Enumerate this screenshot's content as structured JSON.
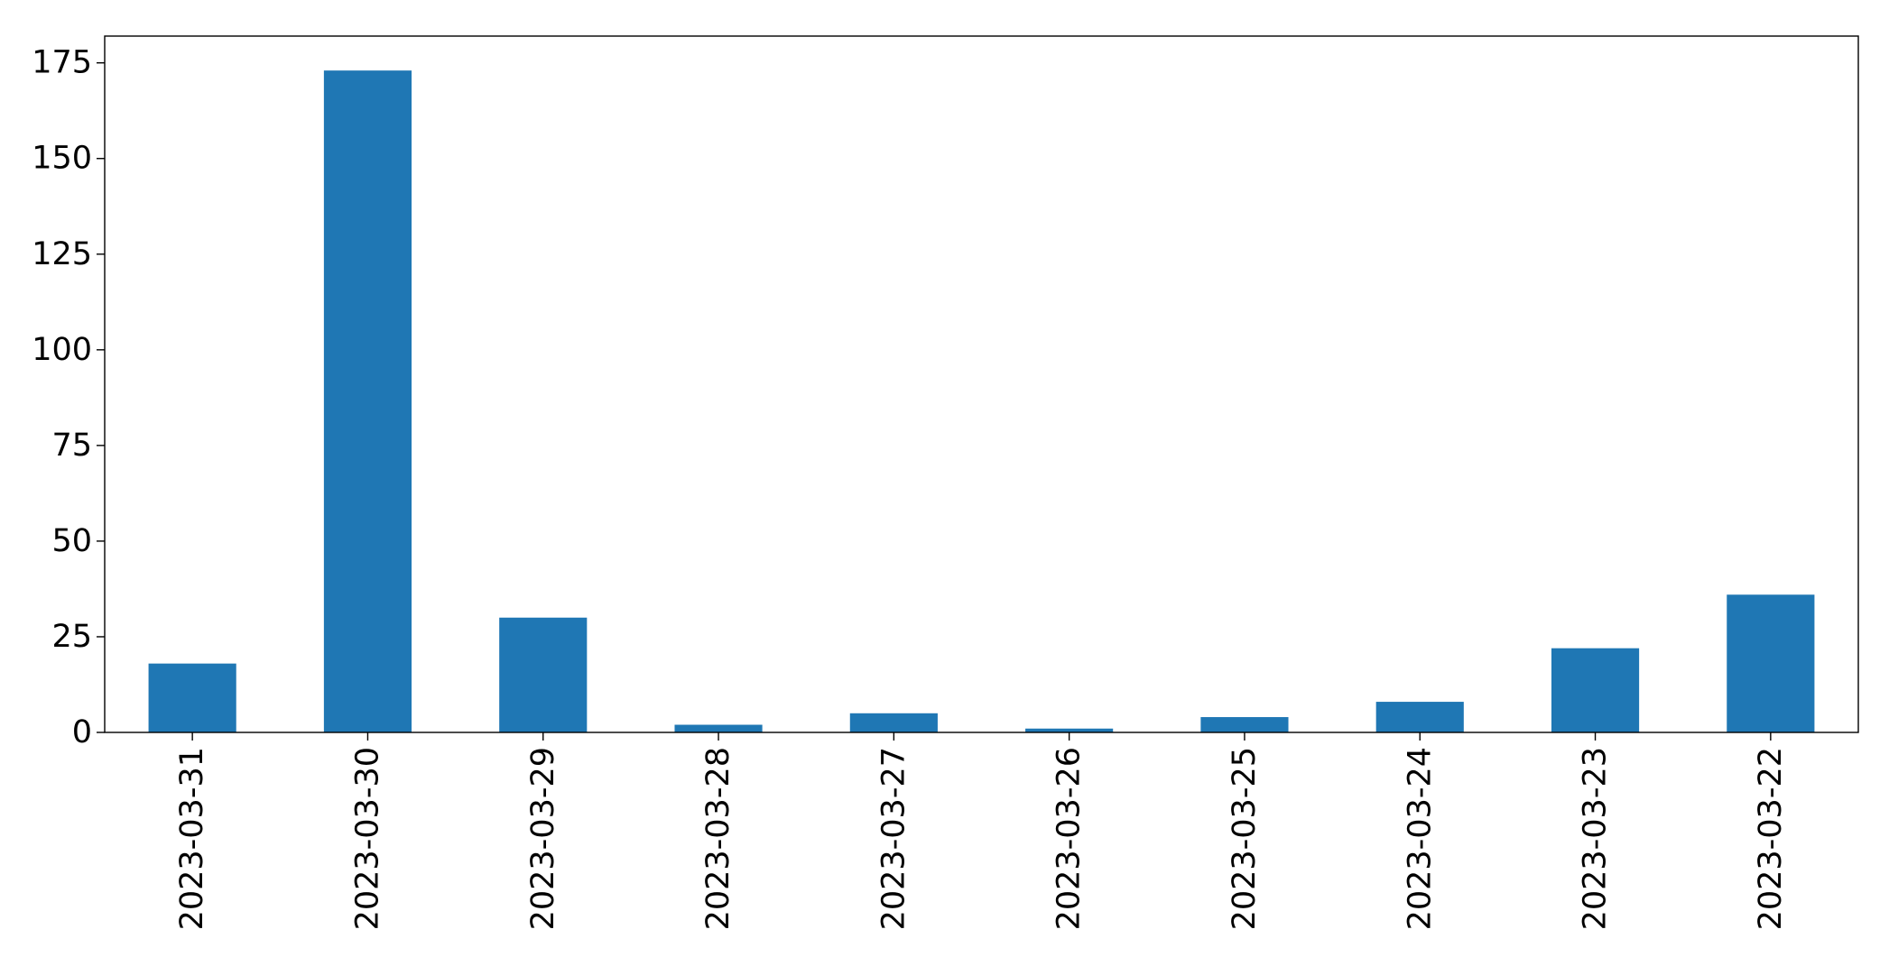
{
  "colors": {
    "bar": "#1f77b4",
    "axis": "#000000",
    "background": "#ffffff"
  },
  "chart_data": {
    "type": "bar",
    "title": "",
    "xlabel": "",
    "ylabel": "",
    "categories": [
      "2023-03-31",
      "2023-03-30",
      "2023-03-29",
      "2023-03-28",
      "2023-03-27",
      "2023-03-26",
      "2023-03-25",
      "2023-03-24",
      "2023-03-23",
      "2023-03-22"
    ],
    "values": [
      18,
      173,
      30,
      2,
      5,
      1,
      4,
      8,
      22,
      36
    ],
    "ylim": [
      0,
      182
    ],
    "yticks": [
      0,
      25,
      50,
      75,
      100,
      125,
      150,
      175
    ],
    "ytick_labels": [
      "0",
      "25",
      "50",
      "75",
      "100",
      "125",
      "150",
      "175"
    ],
    "xtick_rotation": "vertical",
    "grid": false,
    "legend": "none"
  }
}
